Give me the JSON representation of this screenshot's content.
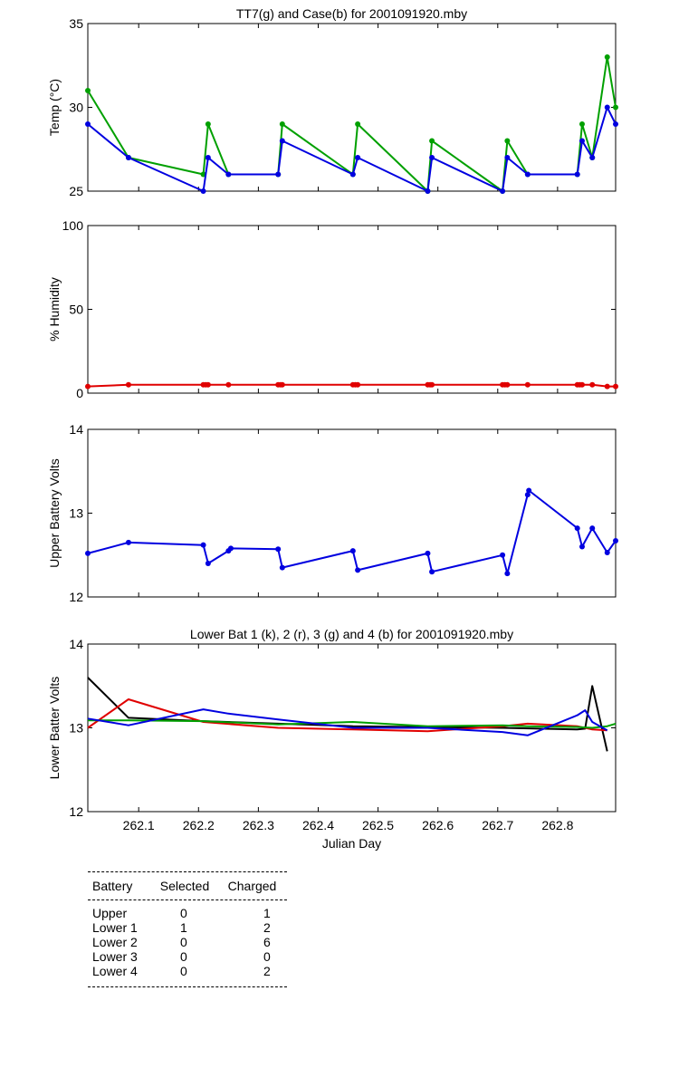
{
  "chart_data": [
    {
      "type": "line",
      "title": "TT7(g) and Case(b) for 2001091920.mby",
      "xlabel": "",
      "ylabel": "Temp  (°C)",
      "xlim": [
        262.015,
        262.897
      ],
      "ylim": [
        25,
        35
      ],
      "yticks": [
        "25",
        "30",
        "35"
      ],
      "markers": true,
      "series": [
        {
          "color": "#00a000",
          "x": [
            262.015,
            262.083,
            262.208,
            262.216,
            262.25,
            262.333,
            262.34,
            262.458,
            262.466,
            262.583,
            262.59,
            262.708,
            262.716,
            262.75,
            262.833,
            262.841,
            262.858,
            262.883,
            262.897
          ],
          "y": [
            31,
            27,
            26,
            29,
            26,
            26,
            29,
            26,
            29,
            25,
            28,
            25,
            28,
            26,
            26,
            29,
            27,
            33,
            30
          ]
        },
        {
          "color": "#0000e0",
          "x": [
            262.015,
            262.083,
            262.208,
            262.216,
            262.25,
            262.333,
            262.34,
            262.458,
            262.466,
            262.583,
            262.59,
            262.708,
            262.716,
            262.75,
            262.833,
            262.841,
            262.858,
            262.883,
            262.897
          ],
          "y": [
            29,
            27,
            25,
            27,
            26,
            26,
            28,
            26,
            27,
            25,
            27,
            25,
            27,
            26,
            26,
            28,
            27,
            30,
            29
          ]
        }
      ]
    },
    {
      "type": "line",
      "title": "",
      "xlabel": "",
      "ylabel": "% Humidity",
      "xlim": [
        262.015,
        262.897
      ],
      "ylim": [
        0,
        100
      ],
      "yticks": [
        "0",
        "50",
        "100"
      ],
      "markers": true,
      "series": [
        {
          "color": "#e00000",
          "x": [
            262.015,
            262.083,
            262.208,
            262.212,
            262.216,
            262.25,
            262.333,
            262.337,
            262.34,
            262.458,
            262.462,
            262.466,
            262.583,
            262.587,
            262.59,
            262.708,
            262.712,
            262.716,
            262.75,
            262.833,
            262.837,
            262.841,
            262.858,
            262.883,
            262.897
          ],
          "y": [
            4,
            5,
            5,
            5,
            5,
            5,
            5,
            5,
            5,
            5,
            5,
            5,
            5,
            5,
            5,
            5,
            5,
            5,
            5,
            5,
            5,
            5,
            5,
            4,
            4
          ]
        }
      ]
    },
    {
      "type": "line",
      "title": "",
      "xlabel": "",
      "ylabel": "Upper Battery Volts",
      "xlim": [
        262.015,
        262.897
      ],
      "ylim": [
        12,
        14
      ],
      "yticks": [
        "12",
        "13",
        "14"
      ],
      "markers": true,
      "series": [
        {
          "color": "#0000e0",
          "x": [
            262.015,
            262.083,
            262.208,
            262.216,
            262.25,
            262.254,
            262.333,
            262.34,
            262.458,
            262.466,
            262.583,
            262.59,
            262.708,
            262.716,
            262.75,
            262.752,
            262.833,
            262.841,
            262.858,
            262.883,
            262.897
          ],
          "y": [
            12.52,
            12.65,
            12.62,
            12.4,
            12.55,
            12.58,
            12.57,
            12.35,
            12.55,
            12.32,
            12.52,
            12.3,
            12.5,
            12.28,
            13.22,
            13.27,
            12.82,
            12.6,
            12.82,
            12.53,
            12.67
          ]
        }
      ]
    },
    {
      "type": "line",
      "title": "Lower Bat 1 (k), 2 (r), 3 (g) and 4 (b) for 2001091920.mby",
      "xlabel": "Julian Day",
      "ylabel": "Lower Batter Volts",
      "xlim": [
        262.015,
        262.897
      ],
      "ylim": [
        12,
        14
      ],
      "yticks": [
        "12",
        "13",
        "14"
      ],
      "xticks": [
        "262.1",
        "262.2",
        "262.3",
        "262.4",
        "262.5",
        "262.6",
        "262.7",
        "262.8"
      ],
      "markers": false,
      "series": [
        {
          "color": "#000000",
          "x": [
            262.015,
            262.083,
            262.208,
            262.333,
            262.458,
            262.583,
            262.708,
            262.833,
            262.846,
            262.858,
            262.883
          ],
          "y": [
            13.6,
            13.12,
            13.08,
            13.05,
            13.02,
            13.01,
            13.0,
            12.98,
            12.99,
            13.5,
            12.72
          ]
        },
        {
          "color": "#e00000",
          "x": [
            262.015,
            262.083,
            262.208,
            262.333,
            262.458,
            262.583,
            262.708,
            262.75,
            262.833,
            262.858,
            262.883
          ],
          "y": [
            13.0,
            13.34,
            13.07,
            13.0,
            12.98,
            12.96,
            13.02,
            13.05,
            13.02,
            12.98,
            12.97
          ]
        },
        {
          "color": "#00a000",
          "x": [
            262.015,
            262.083,
            262.208,
            262.333,
            262.458,
            262.583,
            262.708,
            262.75,
            262.833,
            262.858,
            262.883,
            262.897
          ],
          "y": [
            13.09,
            13.09,
            13.08,
            13.04,
            13.07,
            13.02,
            13.03,
            13.02,
            13.01,
            13.0,
            13.02,
            13.05
          ]
        },
        {
          "color": "#0000e0",
          "x": [
            262.015,
            262.083,
            262.208,
            262.25,
            262.333,
            262.458,
            262.583,
            262.708,
            262.75,
            262.833,
            262.846,
            262.858,
            262.883
          ],
          "y": [
            13.11,
            13.03,
            13.22,
            13.17,
            13.1,
            13.0,
            13.0,
            12.95,
            12.91,
            13.15,
            13.21,
            13.07,
            12.97
          ]
        }
      ]
    }
  ],
  "summary_table": {
    "headers": [
      "Battery",
      "Selected",
      "Charged"
    ],
    "rows": [
      [
        "Upper",
        "0",
        "1"
      ],
      [
        "Lower 1",
        "1",
        "2"
      ],
      [
        "Lower 2",
        "0",
        "6"
      ],
      [
        "Lower 3",
        "0",
        "0"
      ],
      [
        "Lower 4",
        "0",
        "2"
      ]
    ]
  }
}
